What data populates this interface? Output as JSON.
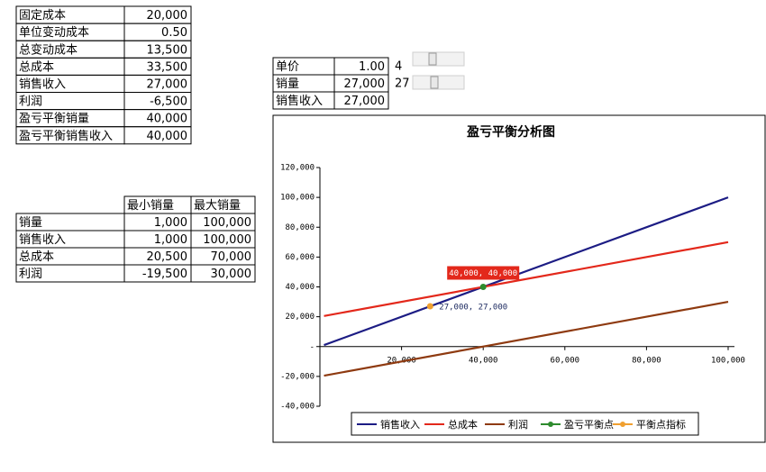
{
  "table1": {
    "rows": [
      [
        "固定成本",
        "20,000"
      ],
      [
        "单位变动成本",
        "0.50"
      ],
      [
        "总变动成本",
        "13,500"
      ],
      [
        "总成本",
        "33,500"
      ],
      [
        "销售收入",
        "27,000"
      ],
      [
        "利润",
        "-6,500"
      ],
      [
        "盈亏平衡销量",
        "40,000"
      ],
      [
        "盈亏平衡销售收入",
        "40,000"
      ]
    ]
  },
  "table2": {
    "rows": [
      [
        "单价",
        "1.00"
      ],
      [
        "销量",
        "27,000"
      ],
      [
        "销售收入",
        "27,000"
      ]
    ],
    "sliders": [
      "4",
      "27"
    ]
  },
  "table3": {
    "header": [
      "最小销量",
      "最大销量"
    ],
    "rows": [
      [
        "销量",
        "1,000",
        "100,000"
      ],
      [
        "销售收入",
        "1,000",
        "100,000"
      ],
      [
        "总成本",
        "20,500",
        "70,000"
      ],
      [
        "利润",
        "-19,500",
        "30,000"
      ]
    ]
  },
  "chart_data": {
    "type": "line",
    "title": "盈亏平衡分析图",
    "xlim": [
      0,
      100000
    ],
    "ylim": [
      -40000,
      120000
    ],
    "xticks": [
      {
        "value": 20000,
        "label": "20,000"
      },
      {
        "value": 40000,
        "label": "40,000"
      },
      {
        "value": 60000,
        "label": "60,000"
      },
      {
        "value": 80000,
        "label": "80,000"
      },
      {
        "value": 100000,
        "label": "100,000"
      }
    ],
    "yticks": [
      {
        "value": -40000,
        "label": "-40,000"
      },
      {
        "value": -20000,
        "label": "-20,000"
      },
      {
        "value": 0,
        "label": "-"
      },
      {
        "value": 20000,
        "label": "20,000"
      },
      {
        "value": 40000,
        "label": "40,000"
      },
      {
        "value": 60000,
        "label": "60,000"
      },
      {
        "value": 80000,
        "label": "80,000"
      },
      {
        "value": 100000,
        "label": "100,000"
      },
      {
        "value": 120000,
        "label": "120,000"
      }
    ],
    "series": [
      {
        "name": "销售收入",
        "color": "#1c1c84",
        "x": [
          1000,
          100000
        ],
        "values": [
          1000,
          100000
        ]
      },
      {
        "name": "总成本",
        "color": "#e3281b",
        "x": [
          1000,
          100000
        ],
        "values": [
          20500,
          70000
        ]
      },
      {
        "name": "利润",
        "color": "#8e3a10",
        "x": [
          1000,
          100000
        ],
        "values": [
          -19500,
          30000
        ]
      },
      {
        "name": "盈亏平衡点",
        "color": "#2e8b2e",
        "x": [
          40000
        ],
        "values": [
          40000
        ],
        "value_labels": [
          "40,000, 40,000"
        ]
      },
      {
        "name": "平衡点指标",
        "color": "#f0a030",
        "x": [
          27000
        ],
        "values": [
          27000
        ],
        "value_labels": [
          "27,000, 27,000"
        ]
      }
    ]
  }
}
